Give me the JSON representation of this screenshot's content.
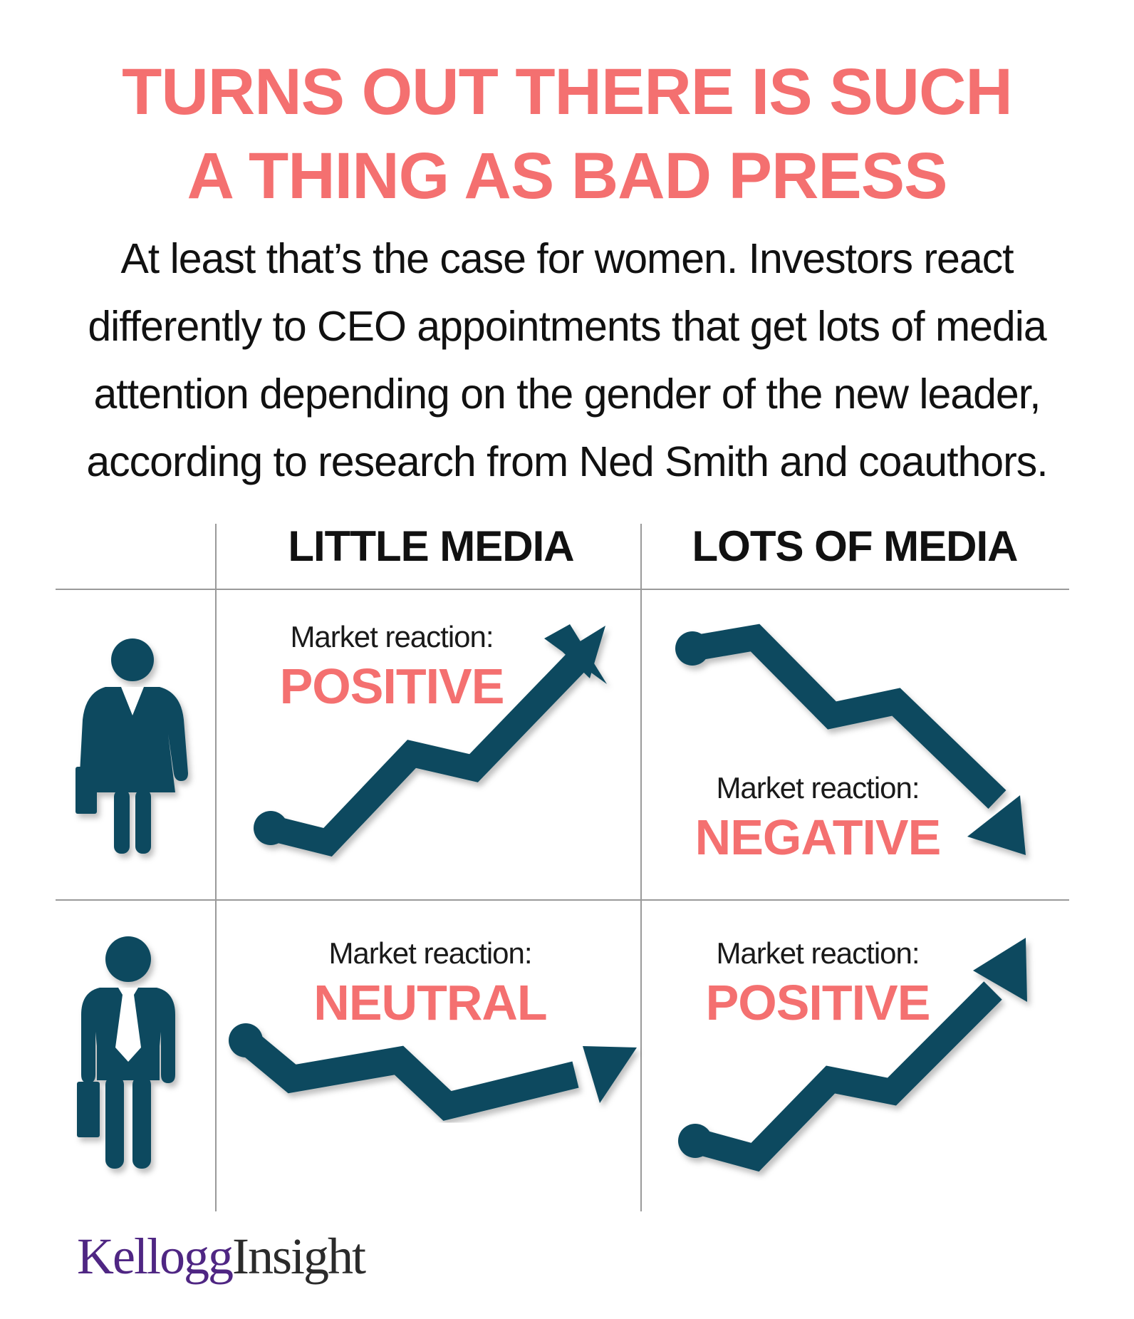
{
  "header": {
    "title_line1": "TURNS OUT THERE IS SUCH",
    "title_line2": "A THING AS BAD PRESS",
    "subtitle": "At least that’s the case for women. Investors react differently to CEO appointments that get lots of media attention depending on the gender of the new leader, according to research from Ned Smith and coauthors."
  },
  "columns": {
    "little_media": "LITTLE MEDIA",
    "lots_of_media": "LOTS OF MEDIA"
  },
  "rows": {
    "woman": {
      "icon": "businesswoman-icon",
      "little_media": {
        "label": "Market reaction:",
        "value": "POSITIVE",
        "trend": "up"
      },
      "lots_of_media": {
        "label": "Market reaction:",
        "value": "NEGATIVE",
        "trend": "down"
      }
    },
    "man": {
      "icon": "businessman-icon",
      "little_media": {
        "label": "Market reaction:",
        "value": "NEUTRAL",
        "trend": "flat"
      },
      "lots_of_media": {
        "label": "Market reaction:",
        "value": "POSITIVE",
        "trend": "up"
      }
    }
  },
  "logo": {
    "part1": "Kellogg",
    "part2": "Insight"
  },
  "colors": {
    "accent": "#f47070",
    "arrow": "#0e4a5f",
    "grid": "#9a9a9a",
    "logo_purple": "#4f2683"
  }
}
